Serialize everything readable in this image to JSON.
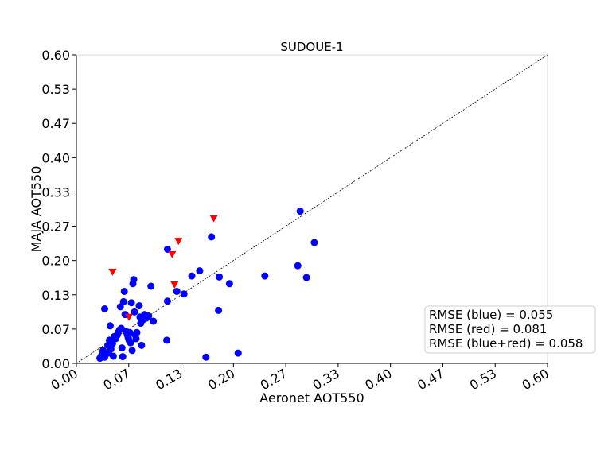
{
  "chart_data": {
    "type": "scatter",
    "title": "SUDOUE-1",
    "xlabel": "Aeronet AOT550",
    "ylabel": "MAJA AOT550",
    "xlim": [
      0,
      0.6
    ],
    "ylim": [
      0,
      0.6
    ],
    "x_ticks": [
      "0.00",
      "0.07",
      "0.13",
      "0.20",
      "0.27",
      "0.33",
      "0.40",
      "0.47",
      "0.53",
      "0.60"
    ],
    "y_ticks": [
      "0.00",
      "0.07",
      "0.13",
      "0.20",
      "0.27",
      "0.33",
      "0.40",
      "0.47",
      "0.53",
      "0.60"
    ],
    "grid": false,
    "reference_line": {
      "type": "identity",
      "from": [
        0,
        0
      ],
      "to": [
        0.6,
        0.6
      ]
    },
    "series": [
      {
        "marker": "circle",
        "color": "#0000ff",
        "points": [
          [
            0.03,
            0.01
          ],
          [
            0.032,
            0.015
          ],
          [
            0.033,
            0.02
          ],
          [
            0.034,
            0.025
          ],
          [
            0.036,
            0.012
          ],
          [
            0.036,
            0.106
          ],
          [
            0.04,
            0.035
          ],
          [
            0.041,
            0.02
          ],
          [
            0.042,
            0.045
          ],
          [
            0.043,
            0.073
          ],
          [
            0.044,
            0.028
          ],
          [
            0.046,
            0.038
          ],
          [
            0.047,
            0.014
          ],
          [
            0.048,
            0.052
          ],
          [
            0.05,
            0.048
          ],
          [
            0.052,
            0.055
          ],
          [
            0.053,
            0.06
          ],
          [
            0.055,
            0.065
          ],
          [
            0.056,
            0.11
          ],
          [
            0.057,
            0.068
          ],
          [
            0.058,
            0.03
          ],
          [
            0.059,
            0.013
          ],
          [
            0.06,
            0.12
          ],
          [
            0.061,
            0.14
          ],
          [
            0.062,
            0.095
          ],
          [
            0.063,
            0.062
          ],
          [
            0.065,
            0.055
          ],
          [
            0.066,
            0.05
          ],
          [
            0.067,
            0.045
          ],
          [
            0.068,
            0.06
          ],
          [
            0.069,
            0.04
          ],
          [
            0.07,
            0.118
          ],
          [
            0.071,
            0.025
          ],
          [
            0.072,
            0.155
          ],
          [
            0.073,
            0.163
          ],
          [
            0.074,
            0.1
          ],
          [
            0.075,
            0.055
          ],
          [
            0.076,
            0.048
          ],
          [
            0.077,
            0.06
          ],
          [
            0.08,
            0.112
          ],
          [
            0.081,
            0.09
          ],
          [
            0.082,
            0.078
          ],
          [
            0.083,
            0.035
          ],
          [
            0.085,
            0.085
          ],
          [
            0.087,
            0.095
          ],
          [
            0.089,
            0.088
          ],
          [
            0.092,
            0.092
          ],
          [
            0.095,
            0.15
          ],
          [
            0.098,
            0.082
          ],
          [
            0.115,
            0.045
          ],
          [
            0.116,
            0.121
          ],
          [
            0.116,
            0.222
          ],
          [
            0.128,
            0.14
          ],
          [
            0.137,
            0.135
          ],
          [
            0.147,
            0.17
          ],
          [
            0.157,
            0.18
          ],
          [
            0.165,
            0.012
          ],
          [
            0.172,
            0.246
          ],
          [
            0.181,
            0.103
          ],
          [
            0.182,
            0.168
          ],
          [
            0.195,
            0.155
          ],
          [
            0.206,
            0.02
          ],
          [
            0.24,
            0.17
          ],
          [
            0.282,
            0.19
          ],
          [
            0.285,
            0.296
          ],
          [
            0.293,
            0.167
          ],
          [
            0.303,
            0.235
          ]
        ]
      },
      {
        "marker": "triangle-down",
        "color": "#ff0000",
        "points": [
          [
            0.046,
            0.178
          ],
          [
            0.067,
            0.09
          ],
          [
            0.122,
            0.212
          ],
          [
            0.125,
            0.153
          ],
          [
            0.13,
            0.238
          ],
          [
            0.175,
            0.282
          ]
        ]
      }
    ],
    "annotations": {
      "stats": [
        "RMSE (blue) = 0.055",
        "RMSE (red) = 0.081",
        "RMSE (blue+red) = 0.058"
      ],
      "placement": "bottom-right"
    }
  }
}
